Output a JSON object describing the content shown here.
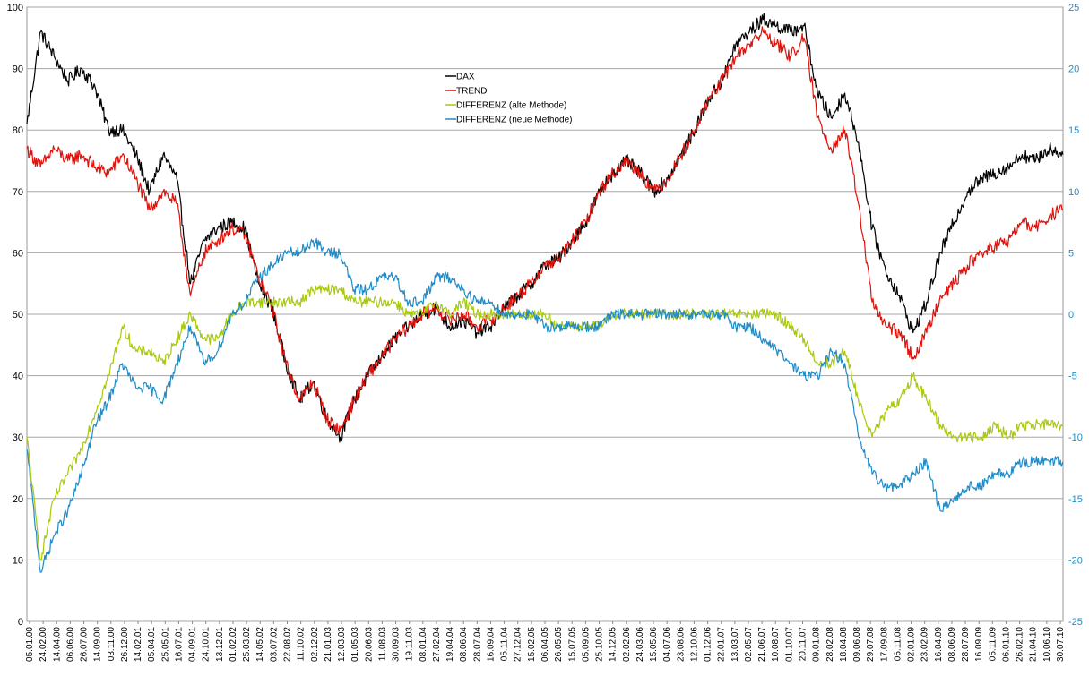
{
  "chart_data": {
    "type": "line",
    "title": "",
    "y_left": {
      "min": 0,
      "max": 100,
      "step": 10,
      "ticks": [
        "0",
        "10",
        "20",
        "30",
        "40",
        "50",
        "60",
        "70",
        "80",
        "90",
        "100"
      ]
    },
    "y_right": {
      "min": -25,
      "max": 25,
      "step": 5,
      "ticks": [
        "-25",
        "-20",
        "-15",
        "-10",
        "-5",
        "0",
        "5",
        "10",
        "15",
        "20",
        "25"
      ],
      "color": "#1f8bc7"
    },
    "grid": "horizontal",
    "legend_position": "top-center",
    "x_labels": [
      "05.01.00",
      "24.02.00",
      "14.04.00",
      "06.06.00",
      "26.07.00",
      "14.09.00",
      "03.11.00",
      "26.12.00",
      "14.02.01",
      "05.04.01",
      "25.05.01",
      "16.07.01",
      "04.09.01",
      "24.10.01",
      "13.12.01",
      "01.02.02",
      "25.03.02",
      "14.05.02",
      "03.07.02",
      "22.08.02",
      "11.10.02",
      "02.12.02",
      "21.01.03",
      "12.03.03",
      "01.05.03",
      "20.06.03",
      "11.08.03",
      "30.09.03",
      "19.11.03",
      "08.01.04",
      "27.02.04",
      "19.04.04",
      "08.06.04",
      "28.07.04",
      "16.09.04",
      "05.11.04",
      "27.12.04",
      "15.02.05",
      "06.04.05",
      "26.05.05",
      "15.07.05",
      "05.09.05",
      "25.10.05",
      "14.12.05",
      "02.02.06",
      "24.03.06",
      "15.05.06",
      "04.07.06",
      "23.08.06",
      "12.10.06",
      "01.12.06",
      "22.01.07",
      "13.03.07",
      "02.05.07",
      "21.06.07",
      "10.08.07",
      "01.10.07",
      "20.11.07",
      "09.01.08",
      "28.02.08",
      "18.04.08",
      "09.06.08",
      "29.07.08",
      "17.09.08",
      "06.11.08",
      "02.01.09",
      "23.02.09",
      "16.04.09",
      "08.06.09",
      "28.07.09",
      "16.09.09",
      "05.11.09",
      "06.01.10",
      "26.02.10",
      "21.04.10",
      "10.06.10",
      "30.07.10"
    ],
    "series": [
      {
        "name": "DAX",
        "color": "#000000",
        "axis": "left",
        "values": [
          81,
          96,
          92,
          88,
          90,
          87,
          80,
          80,
          76,
          70,
          76,
          72,
          55,
          62,
          64,
          65,
          64,
          55,
          51,
          42,
          36,
          39,
          33,
          30,
          36,
          40,
          43,
          46,
          48,
          50,
          51,
          48,
          49,
          47,
          48,
          51,
          53,
          55,
          58,
          59,
          62,
          65,
          70,
          73,
          75,
          73,
          70,
          72,
          76,
          80,
          85,
          88,
          94,
          96,
          98,
          97,
          96,
          97,
          86,
          82,
          86,
          78,
          64,
          57,
          53,
          47,
          52,
          60,
          65,
          70,
          72,
          73,
          74,
          76,
          75,
          77,
          76
        ]
      },
      {
        "name": "TREND",
        "color": "#e0120c",
        "axis": "left",
        "values": [
          77,
          74,
          77,
          75,
          76,
          74,
          73,
          76,
          72,
          67,
          70,
          68,
          53,
          60,
          62,
          64,
          63,
          56,
          51,
          42,
          36,
          39,
          33,
          31,
          36,
          40,
          43,
          46,
          48,
          50,
          51,
          49,
          50,
          48,
          49,
          51,
          53,
          55,
          58,
          59,
          62,
          65,
          70,
          73,
          75,
          73,
          70,
          72,
          76,
          80,
          85,
          88,
          92,
          94,
          96,
          94,
          92,
          95,
          82,
          77,
          80,
          68,
          52,
          48,
          47,
          43,
          47,
          53,
          55,
          58,
          60,
          61,
          62,
          65,
          64,
          66,
          67
        ]
      },
      {
        "name": "DIFFERENZ (alte Methode)",
        "color": "#a8c90f",
        "axis": "right",
        "values": [
          -10,
          -20,
          -15,
          -13,
          -11,
          -8,
          -5,
          -1,
          -3,
          -3,
          -4,
          -2,
          0,
          -2,
          -2,
          0,
          1,
          1,
          1,
          1,
          1,
          2,
          2,
          2,
          1,
          1,
          1,
          1,
          0,
          0,
          1,
          0,
          1,
          0,
          0,
          0,
          0,
          0,
          0,
          -1,
          -1,
          -1,
          -1,
          0,
          0,
          0,
          0,
          0,
          0,
          0,
          0,
          0,
          0,
          0,
          0,
          0,
          -1,
          -2,
          -4,
          -4,
          -3,
          -7,
          -10,
          -8,
          -7,
          -5,
          -7,
          -9,
          -10,
          -10,
          -10,
          -9,
          -10,
          -9,
          -9,
          -9,
          -9
        ]
      },
      {
        "name": "DIFFERENZ (neue Methode)",
        "color": "#1f8bc7",
        "axis": "right",
        "values": [
          -11,
          -21,
          -18,
          -16,
          -13,
          -9,
          -7,
          -4,
          -6,
          -6,
          -7,
          -4,
          -1,
          -4,
          -3,
          0,
          1,
          3,
          4,
          5,
          5,
          6,
          5,
          5,
          2,
          2,
          3,
          3,
          1,
          1,
          3,
          3,
          2,
          1,
          1,
          0,
          0,
          0,
          -1,
          -1,
          -1,
          -1,
          -1,
          0,
          0,
          0,
          0,
          0,
          0,
          0,
          0,
          0,
          -1,
          -1,
          -2,
          -3,
          -4,
          -5,
          -5,
          -3,
          -4,
          -10,
          -13,
          -14,
          -14,
          -13,
          -12,
          -16,
          -15,
          -14,
          -14,
          -13,
          -13,
          -12,
          -12,
          -12,
          -12
        ]
      }
    ]
  }
}
